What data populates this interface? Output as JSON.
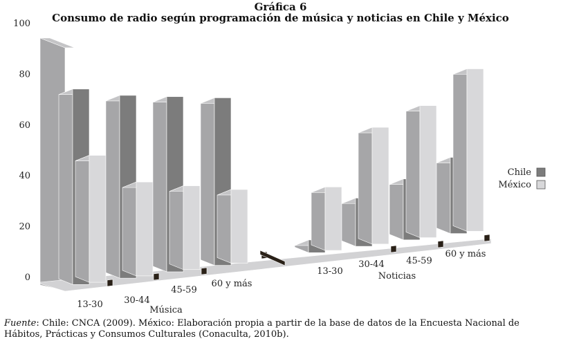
{
  "figure": {
    "label": "Gráfica 6",
    "title": "Consumo de radio según programación de música y noticias en Chile y México"
  },
  "caption": {
    "prefix": "Fuente",
    "text": ": Chile: CNCA (2009). México: Elaboración propia a partir de la base de datos de la Encuesta Nacional de Hábitos, Prácticas y Consumos Culturales (Conaculta, 2010b)."
  },
  "colors": {
    "chile_front": "#7c7c7c",
    "chile_side": "#5a5a5a",
    "chile_top": "#a2a2a2",
    "mexico_front": "#d8d8da",
    "mexico_side": "#b8b8ba",
    "mexico_top": "#ececee",
    "back_front": "#a6a6a8",
    "back_top": "#c4c4c6",
    "back_side": "#8a8a8c",
    "floor": "#8d8d8f",
    "floor_edge": "#2a2118"
  },
  "chart_data": {
    "type": "bar",
    "yticks": [
      0,
      20,
      40,
      60,
      80,
      100
    ],
    "ylim": [
      0,
      100
    ],
    "groups": [
      {
        "name": "Música",
        "categories": [
          "13-30",
          "30-44",
          "45-59",
          "60 y más"
        ]
      },
      {
        "name": "Noticias",
        "categories": [
          "13-30",
          "30-44",
          "45-59",
          "60 y más"
        ]
      }
    ],
    "series": [
      {
        "name": "Chile",
        "values": [
          77,
          72,
          69,
          66,
          5,
          19,
          24,
          30
        ]
      },
      {
        "name": "México",
        "values": [
          50,
          37,
          33,
          29,
          25,
          46,
          52,
          64
        ]
      }
    ]
  }
}
